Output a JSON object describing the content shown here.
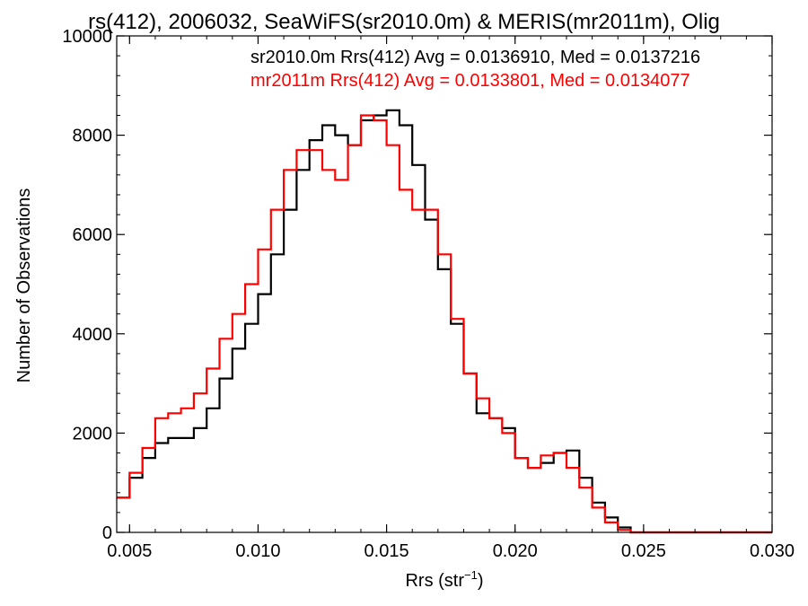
{
  "chart_data": {
    "type": "line",
    "title": "rs(412), 2006032, SeaWiFS(sr2010.0m) & MERIS(mr2011m), Olig",
    "xlabel": "Rrs (str",
    "xlabel_sup": "−1",
    "xlabel_close": ")",
    "ylabel": "Number of Observations",
    "xlim": [
      0.0045,
      0.03
    ],
    "ylim": [
      0,
      10000
    ],
    "x_ticks": [
      0.005,
      0.01,
      0.015,
      0.02,
      0.025,
      0.03
    ],
    "x_tick_labels": [
      "0.005",
      "0.010",
      "0.015",
      "0.020",
      "0.025",
      "0.030"
    ],
    "y_ticks": [
      0,
      2000,
      4000,
      6000,
      8000,
      10000
    ],
    "y_tick_labels": [
      "0",
      "2000",
      "4000",
      "6000",
      "8000",
      "10000"
    ],
    "grid": false,
    "legend_position": "top-right",
    "step": true,
    "series": [
      {
        "name": "sr2010.0m Rrs(412) Avg = 0.0136910, Med = 0.0137216",
        "color": "#000000",
        "x": [
          0.0045,
          0.005,
          0.0055,
          0.006,
          0.0065,
          0.007,
          0.0075,
          0.008,
          0.0085,
          0.009,
          0.0095,
          0.01,
          0.0105,
          0.011,
          0.0115,
          0.012,
          0.0125,
          0.013,
          0.0135,
          0.014,
          0.0145,
          0.015,
          0.0155,
          0.016,
          0.0165,
          0.017,
          0.0175,
          0.018,
          0.0185,
          0.019,
          0.0195,
          0.02,
          0.0205,
          0.021,
          0.0215,
          0.022,
          0.0225,
          0.023,
          0.0235,
          0.024,
          0.0245,
          0.025,
          0.026,
          0.028,
          0.03
        ],
        "y": [
          700,
          1100,
          1500,
          1800,
          1900,
          1900,
          2100,
          2500,
          3100,
          3700,
          4200,
          4800,
          5600,
          6500,
          7300,
          7900,
          8200,
          8000,
          7800,
          8300,
          8400,
          8500,
          8200,
          7400,
          6300,
          5300,
          4200,
          3200,
          2400,
          2300,
          2100,
          1500,
          1300,
          1400,
          1600,
          1650,
          1100,
          600,
          300,
          100,
          0,
          0,
          0,
          0,
          0
        ]
      },
      {
        "name": "mr2011m Rrs(412) Avg = 0.0133801, Med = 0.0134077",
        "color": "#ff0000",
        "x": [
          0.0045,
          0.005,
          0.0055,
          0.006,
          0.0065,
          0.007,
          0.0075,
          0.008,
          0.0085,
          0.009,
          0.0095,
          0.01,
          0.0105,
          0.011,
          0.0115,
          0.012,
          0.0125,
          0.013,
          0.0135,
          0.014,
          0.0145,
          0.015,
          0.0155,
          0.016,
          0.0165,
          0.017,
          0.0175,
          0.018,
          0.0185,
          0.019,
          0.0195,
          0.02,
          0.0205,
          0.021,
          0.0215,
          0.022,
          0.0225,
          0.023,
          0.0235,
          0.024,
          0.0245,
          0.025,
          0.026,
          0.028,
          0.03
        ],
        "y": [
          700,
          1200,
          1700,
          2300,
          2400,
          2500,
          2800,
          3300,
          3900,
          4400,
          5000,
          5700,
          6500,
          7300,
          7700,
          7700,
          7300,
          7100,
          7800,
          8400,
          8300,
          7800,
          6900,
          6500,
          6500,
          5600,
          4300,
          3200,
          2700,
          2300,
          2000,
          1500,
          1300,
          1550,
          1600,
          1300,
          900,
          500,
          200,
          50,
          0,
          0,
          0,
          0,
          0
        ]
      }
    ]
  }
}
